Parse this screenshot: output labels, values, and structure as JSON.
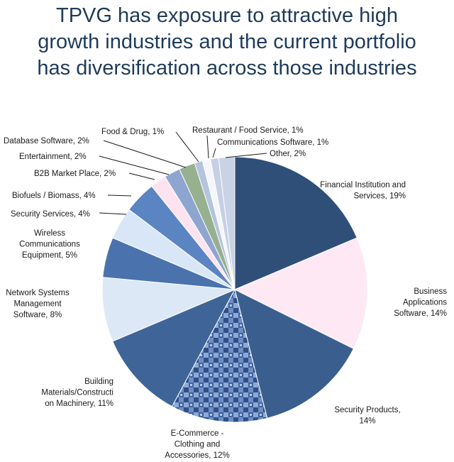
{
  "title_lines": [
    "TPVG has exposure to attractive high",
    "growth industries and the current portfolio",
    "has diversification across those industries"
  ],
  "chart_data": {
    "type": "pie",
    "title": "TPVG has exposure to attractive high growth industries and the current portfolio has diversification across those industries",
    "unit": "%",
    "slices": [
      {
        "name": "Financial Institution and Services",
        "value": 19,
        "color": "#2f4f78",
        "label_lines": [
          "Financial Institution and",
          "Services, 19%"
        ]
      },
      {
        "name": "Business Applications Software",
        "value": 14,
        "color": "#fde8f4",
        "label_lines": [
          "Business",
          "Applications",
          "Software, 14%"
        ]
      },
      {
        "name": "Security Products",
        "value": 14,
        "color": "#3a5f8e",
        "label_lines": [
          "Security Products,",
          "14%"
        ]
      },
      {
        "name": "E-Commerce - Clothing and Accessories",
        "value": 12,
        "color": "#4a6fa7",
        "pattern": true,
        "label_lines": [
          "E-Commerce  -",
          "Clothing and",
          "Accessories, 12%"
        ]
      },
      {
        "name": "Building Materials/Construction Machinery",
        "value": 11,
        "color": "#3f6598",
        "label_lines": [
          "Building",
          "Materials/Constructi",
          "on Machinery, 11%"
        ]
      },
      {
        "name": "Network Systems Management Software",
        "value": 8,
        "color": "#dce8f5",
        "label_lines": [
          "Network  Systems",
          "Management",
          "Software, 8%"
        ]
      },
      {
        "name": "Wireless Communications Equipment",
        "value": 5,
        "color": "#4a73ad",
        "label_lines": [
          "Wireless",
          "Communications",
          "Equipment,  5%"
        ]
      },
      {
        "name": "Security Services",
        "value": 4,
        "color": "#d9e6f7",
        "label_lines": [
          "Security Services, 4%"
        ]
      },
      {
        "name": "Biofuels / Biomass",
        "value": 4,
        "color": "#5b84c2",
        "label_lines": [
          "Biofuels / Biomass, 4%"
        ]
      },
      {
        "name": "B2B Market Place",
        "value": 2,
        "color": "#fde3f0",
        "label_lines": [
          "B2B Market Place, 2%"
        ]
      },
      {
        "name": "Entertainment",
        "value": 2,
        "color": "#8ea6cf",
        "label_lines": [
          "Entertainment,  2%"
        ]
      },
      {
        "name": "Database Software",
        "value": 2,
        "color": "#97b08f",
        "label_lines": [
          "Database Software, 2%"
        ]
      },
      {
        "name": "Food & Drug",
        "value": 1,
        "color": "#b4c3de",
        "label_lines": [
          "Food & Drug, 1%"
        ]
      },
      {
        "name": "Restaurant / Food Service",
        "value": 1,
        "color": "#f4f6fb",
        "label_lines": [
          "Restaurant / Food Service, 1%"
        ]
      },
      {
        "name": "Communications Software",
        "value": 1,
        "color": "#c5d0e4",
        "label_lines": [
          "Communications Software, 1%"
        ]
      },
      {
        "name": "Other",
        "value": 2,
        "color": "#c9d3e6",
        "label_lines": [
          "Other, 2%"
        ]
      }
    ]
  }
}
